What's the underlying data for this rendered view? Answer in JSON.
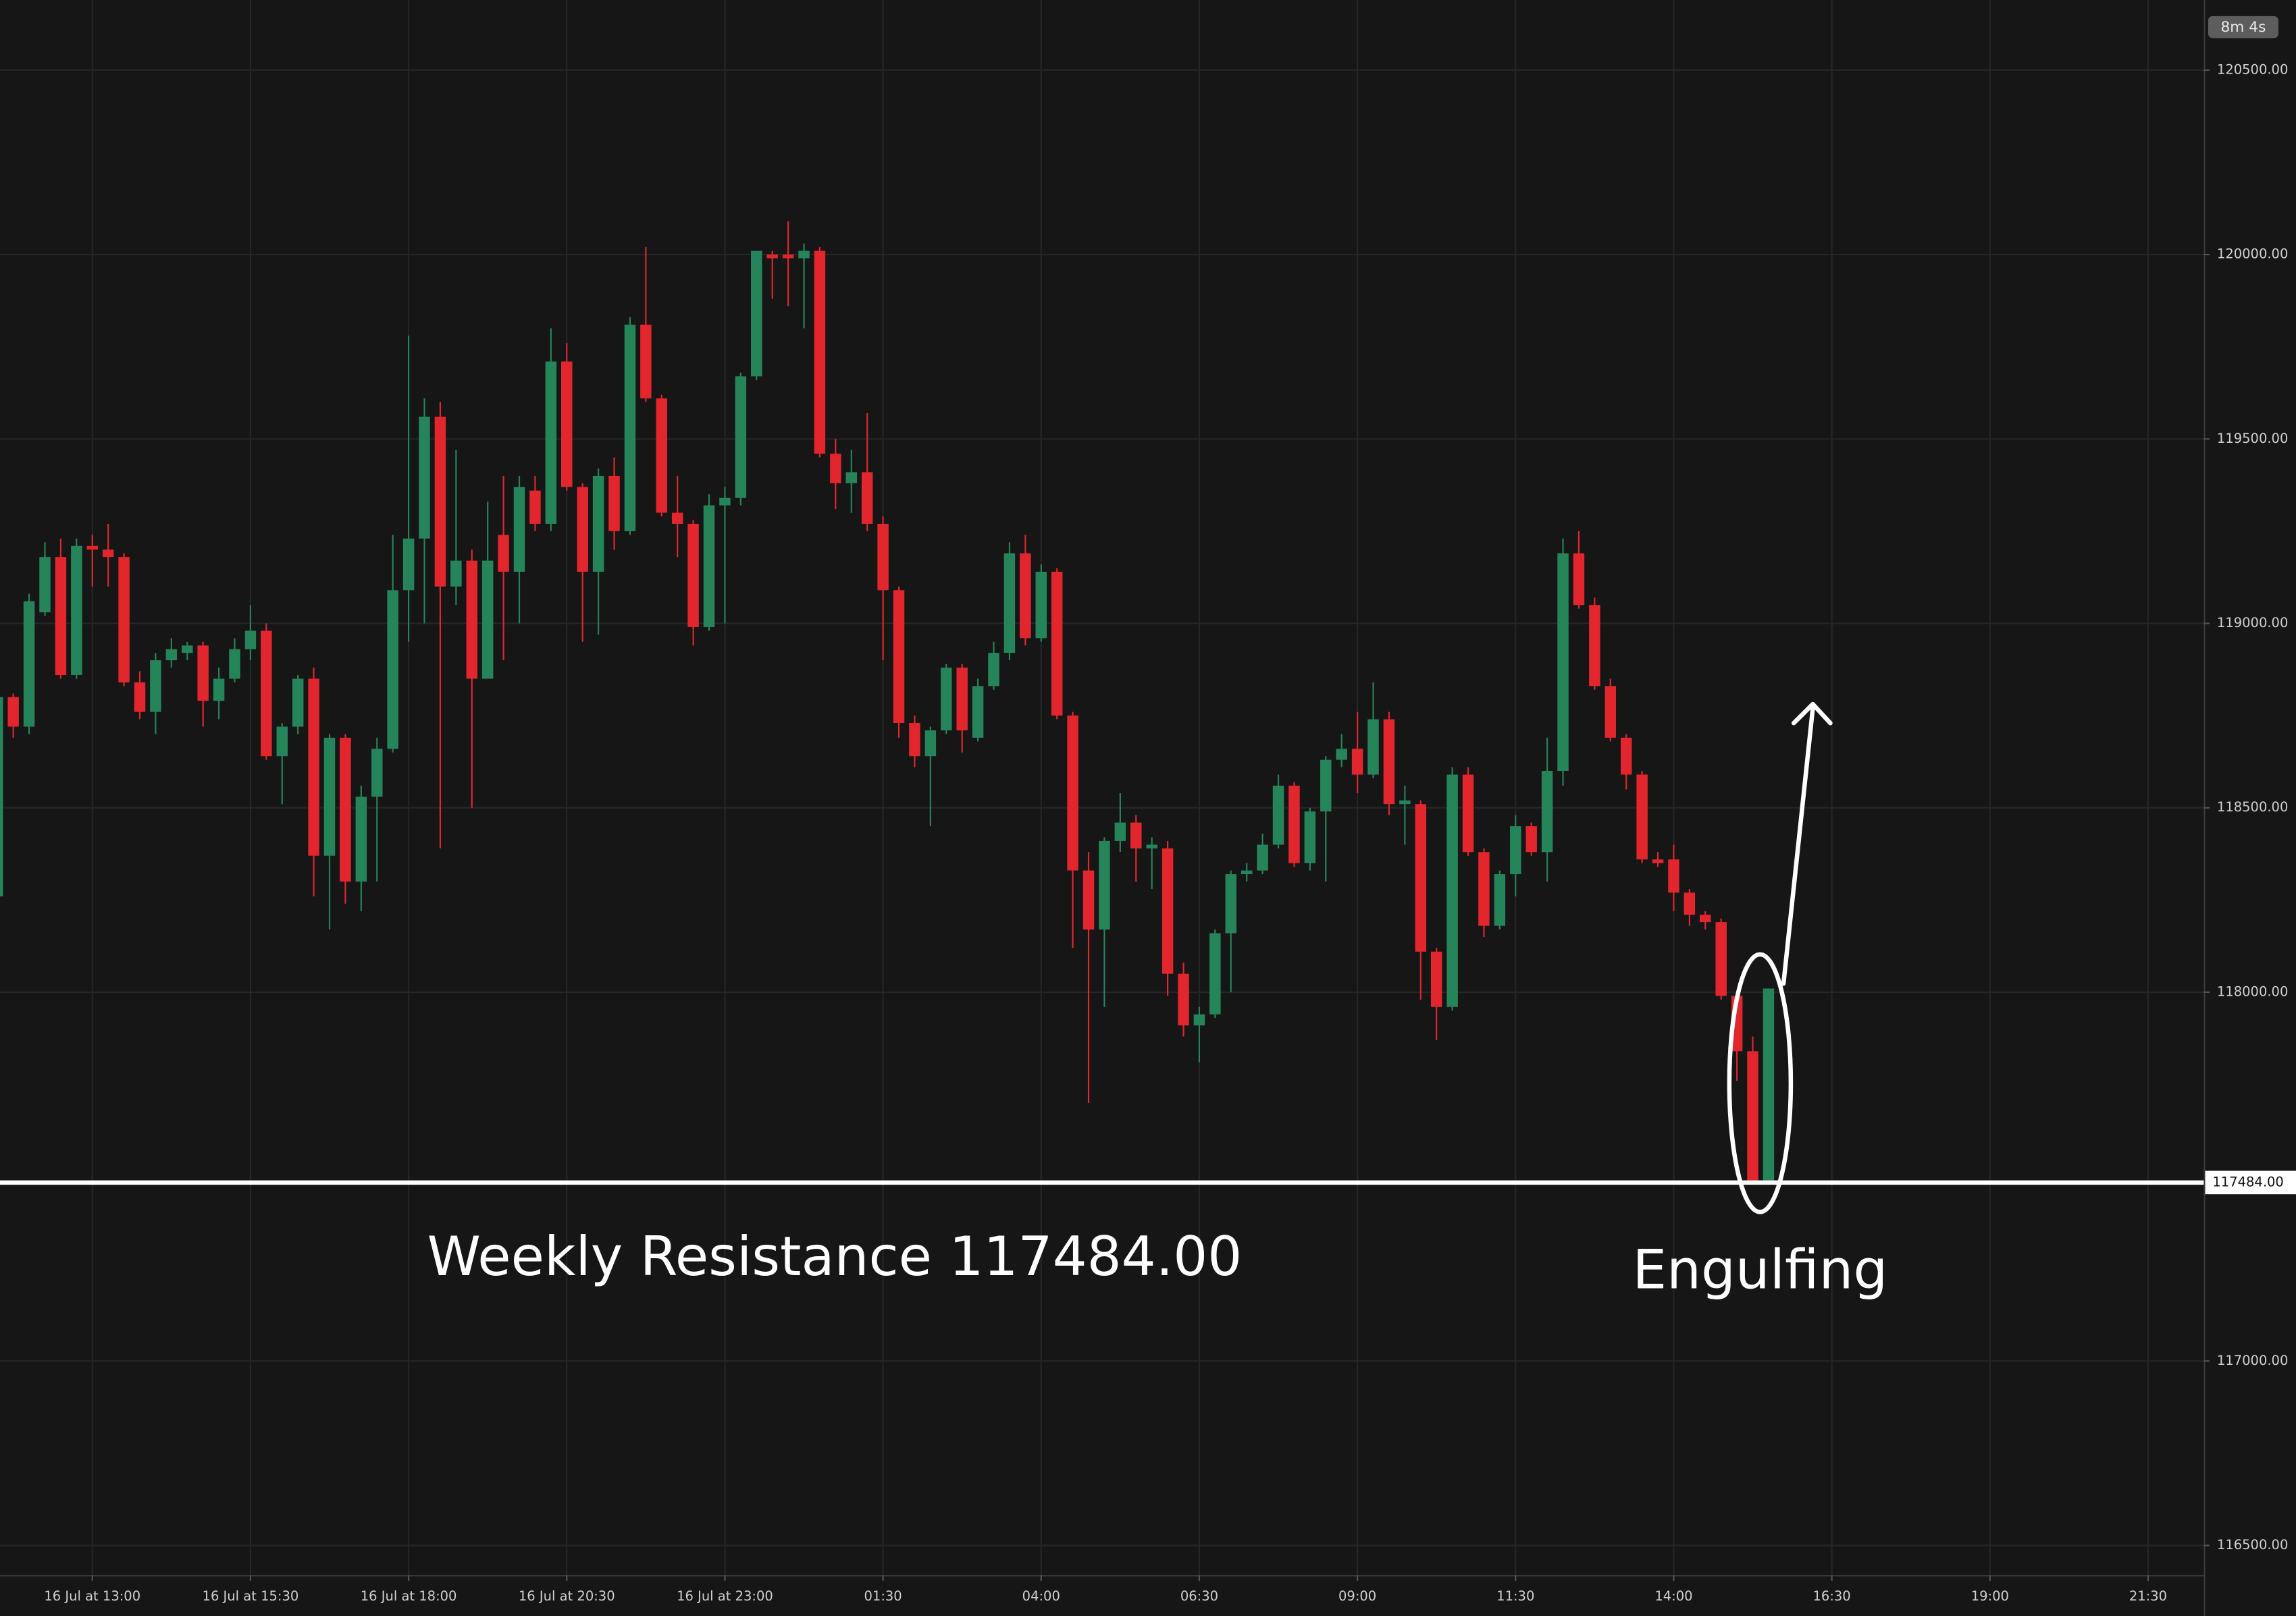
{
  "chart_data": {
    "type": "candlestick",
    "countdown": "8m 4s",
    "up_color": "#26845a",
    "down_color": "#e1262d",
    "grid": true,
    "xlim": [
      11.54,
      46.38
    ],
    "ylim": [
      116420,
      120690
    ],
    "xticks": [
      {
        "value": 13,
        "label": "16 Jul at 13:00"
      },
      {
        "value": 15.5,
        "label": "16 Jul at 15:30"
      },
      {
        "value": 18,
        "label": "16 Jul at 18:00"
      },
      {
        "value": 20.5,
        "label": "16 Jul at 20:30"
      },
      {
        "value": 23,
        "label": "16 Jul at 23:00"
      },
      {
        "value": 25.5,
        "label": "01:30"
      },
      {
        "value": 28,
        "label": "04:00"
      },
      {
        "value": 30.5,
        "label": "06:30"
      },
      {
        "value": 33,
        "label": "09:00"
      },
      {
        "value": 35.5,
        "label": "11:30"
      },
      {
        "value": 38,
        "label": "14:00"
      },
      {
        "value": 40.5,
        "label": "16:30"
      },
      {
        "value": 43,
        "label": "19:00"
      },
      {
        "value": 45.5,
        "label": "21:30"
      }
    ],
    "yticks": [
      {
        "value": 116500,
        "label": "116500.00"
      },
      {
        "value": 117000,
        "label": "117000.00"
      },
      {
        "value": 118000,
        "label": "118000.00"
      },
      {
        "value": 118500,
        "label": "118500.00"
      },
      {
        "value": 119000,
        "label": "119000.00"
      },
      {
        "value": 119500,
        "label": "119500.00"
      },
      {
        "value": 120000,
        "label": "120000.00"
      },
      {
        "value": 120500,
        "label": "120500.00"
      }
    ],
    "hline": {
      "value": 117484,
      "label": "117484.00",
      "text": "Weekly Resistance 117484.00",
      "color": "#ffffff"
    },
    "pattern_label": "Engulfing",
    "x": [
      11.5,
      11.75,
      12,
      12.25,
      12.5,
      12.75,
      13,
      13.25,
      13.5,
      13.75,
      14,
      14.25,
      14.5,
      14.75,
      15,
      15.25,
      15.5,
      15.75,
      16,
      16.25,
      16.5,
      16.75,
      17,
      17.25,
      17.5,
      17.75,
      18,
      18.25,
      18.5,
      18.75,
      19,
      19.25,
      19.5,
      19.75,
      20,
      20.25,
      20.5,
      20.75,
      21,
      21.25,
      21.5,
      21.75,
      22,
      22.25,
      22.5,
      22.75,
      23,
      23.25,
      23.5,
      23.75,
      24,
      24.25,
      24.5,
      24.75,
      25,
      25.25,
      25.5,
      25.75,
      26,
      26.25,
      26.5,
      26.75,
      27,
      27.25,
      27.5,
      27.75,
      28,
      28.25,
      28.5,
      28.75,
      29,
      29.25,
      29.5,
      29.75,
      30,
      30.25,
      30.5,
      30.75,
      31,
      31.25,
      31.5,
      31.75,
      32,
      32.25,
      32.5,
      32.75,
      33,
      33.25,
      33.5,
      33.75,
      34,
      34.25,
      34.5,
      34.75,
      35,
      35.25,
      35.5,
      35.75,
      36,
      36.25,
      36.5,
      36.75,
      37,
      37.25,
      37.5,
      37.75,
      38,
      38.25,
      38.5,
      38.75,
      39,
      39.25,
      39.5
    ],
    "open": [
      118260,
      118800,
      118720,
      119030,
      119180,
      118860,
      119210,
      119200,
      119180,
      118840,
      118760,
      118900,
      118920,
      118940,
      118790,
      118850,
      118930,
      118980,
      118640,
      118720,
      118850,
      118370,
      118690,
      118300,
      118530,
      118660,
      119090,
      119230,
      119560,
      119100,
      119170,
      118850,
      119240,
      119140,
      119360,
      119270,
      119710,
      119370,
      119140,
      119400,
      119250,
      119810,
      119610,
      119300,
      119270,
      118990,
      119320,
      119340,
      119670,
      120000,
      120000,
      119990,
      120010,
      119460,
      119380,
      119410,
      119270,
      119090,
      118730,
      118640,
      118710,
      118880,
      118690,
      118830,
      118920,
      119190,
      118960,
      119140,
      118750,
      118330,
      118170,
      118410,
      118460,
      118390,
      118390,
      118050,
      117910,
      117940,
      118160,
      118320,
      118330,
      118400,
      118560,
      118350,
      118490,
      118630,
      118660,
      118590,
      118740,
      118510,
      118510,
      118110,
      117960,
      118590,
      118380,
      118180,
      118320,
      118450,
      118380,
      118600,
      119190,
      119050,
      118830,
      118690,
      118590,
      118360,
      118360,
      118270,
      118210,
      118190,
      117990,
      117840,
      117490
    ],
    "high": [
      118850,
      118810,
      119080,
      119220,
      119230,
      119230,
      119240,
      119270,
      119190,
      118870,
      118920,
      118960,
      118950,
      118950,
      118880,
      118960,
      119050,
      119000,
      118730,
      118860,
      118880,
      118700,
      118700,
      118560,
      118690,
      119240,
      119780,
      119610,
      119600,
      119470,
      119200,
      119330,
      119400,
      119400,
      119400,
      119800,
      119760,
      119380,
      119420,
      119450,
      119830,
      120020,
      119620,
      119400,
      119280,
      119350,
      119370,
      119680,
      120010,
      120010,
      120090,
      120030,
      120020,
      119500,
      119470,
      119570,
      119290,
      119100,
      118750,
      118720,
      118890,
      118890,
      118850,
      118950,
      119220,
      119240,
      119160,
      119150,
      118760,
      118380,
      118420,
      118540,
      118480,
      118420,
      118410,
      118080,
      117960,
      118170,
      118330,
      118350,
      118430,
      118590,
      118570,
      118500,
      118640,
      118700,
      118760,
      118840,
      118760,
      118560,
      118520,
      118120,
      118610,
      118610,
      118390,
      118330,
      118480,
      118460,
      118690,
      119230,
      119250,
      119070,
      118850,
      118700,
      118600,
      118380,
      118400,
      118280,
      118220,
      118200,
      118000,
      117880,
      118010
    ],
    "low": [
      118250,
      118690,
      118700,
      119020,
      118850,
      118850,
      119100,
      119100,
      118830,
      118740,
      118700,
      118880,
      118900,
      118720,
      118740,
      118840,
      118900,
      118630,
      118510,
      118700,
      118260,
      118170,
      118240,
      118220,
      118300,
      118650,
      118950,
      119000,
      118390,
      119050,
      118500,
      118850,
      118900,
      119000,
      119250,
      119250,
      119360,
      118950,
      118970,
      119200,
      119240,
      119600,
      119290,
      119180,
      118940,
      118980,
      119000,
      119320,
      119660,
      119880,
      119860,
      119800,
      119450,
      119310,
      119300,
      119250,
      118900,
      118690,
      118610,
      118450,
      118700,
      118650,
      118680,
      118820,
      118900,
      118940,
      118950,
      118740,
      118120,
      117700,
      117960,
      118380,
      118300,
      118280,
      117990,
      117880,
      117810,
      117930,
      118000,
      118300,
      118320,
      118390,
      118340,
      118330,
      118300,
      118610,
      118540,
      118580,
      118480,
      118400,
      117980,
      117870,
      117950,
      118370,
      118150,
      118170,
      118260,
      118370,
      118300,
      118560,
      119040,
      118820,
      118680,
      118550,
      118350,
      118340,
      118220,
      118180,
      118170,
      117980,
      117760,
      117484,
      117484
    ],
    "close": [
      118800,
      118720,
      119060,
      119180,
      118860,
      119210,
      119200,
      119180,
      118840,
      118760,
      118900,
      118930,
      118940,
      118790,
      118850,
      118930,
      118980,
      118640,
      118720,
      118850,
      118370,
      118690,
      118300,
      118530,
      118660,
      119090,
      119230,
      119560,
      119100,
      119170,
      118850,
      119170,
      119140,
      119370,
      119270,
      119710,
      119370,
      119140,
      119400,
      119250,
      119810,
      119610,
      119300,
      119270,
      118990,
      119320,
      119340,
      119670,
      120010,
      119990,
      119990,
      120010,
      119460,
      119380,
      119410,
      119270,
      119090,
      118730,
      118640,
      118710,
      118880,
      118710,
      118830,
      118920,
      119190,
      118960,
      119140,
      118750,
      118330,
      118170,
      118410,
      118460,
      118390,
      118400,
      118050,
      117910,
      117940,
      118160,
      118320,
      118330,
      118400,
      118560,
      118350,
      118490,
      118630,
      118660,
      118590,
      118740,
      118510,
      118520,
      118110,
      117960,
      118590,
      118380,
      118180,
      118320,
      118450,
      118380,
      118600,
      119190,
      119050,
      118830,
      118690,
      118590,
      118360,
      118350,
      118270,
      118210,
      118190,
      117990,
      117840,
      117490,
      118010
    ]
  }
}
